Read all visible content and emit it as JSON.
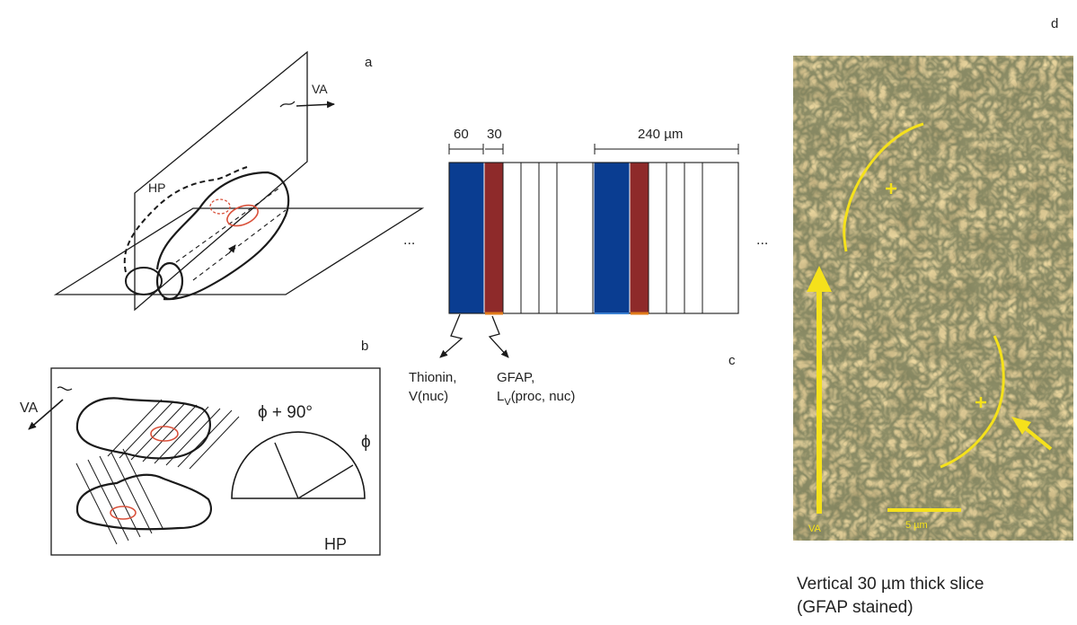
{
  "panels": {
    "a": {
      "label": "a",
      "va_label": "VA",
      "hp_label": "HP"
    },
    "b": {
      "label": "b",
      "va_label": "VA",
      "hp_label": "HP",
      "angle_label": "ϕ + 90°",
      "phi_label": "ϕ"
    },
    "c": {
      "label": "c",
      "width_1": "60",
      "width_2": "30",
      "period": "240 µm",
      "ellipsis": "...",
      "stain_1_name": "Thionin,",
      "stain_1_measure": "V(nuc)",
      "stain_2_name": "GFAP,",
      "stain_2_measure_main": "L",
      "stain_2_measure_sub": "V",
      "stain_2_measure_tail": "(proc, nuc)"
    },
    "d": {
      "label": "d",
      "va_label": "VA",
      "scale_label": "5 µm",
      "caption_line_1": "Vertical 30 µm thick slice",
      "caption_line_2": "(GFAP stained)"
    }
  },
  "colors": {
    "thionin_blue": "#0a3d91",
    "gfap_red": "#8e2a2a",
    "section_orange": "#e07b1a",
    "outline_red": "#d9503a",
    "arrow_yellow": "#f5e11b",
    "micrograph_base": "#b89a5c"
  }
}
